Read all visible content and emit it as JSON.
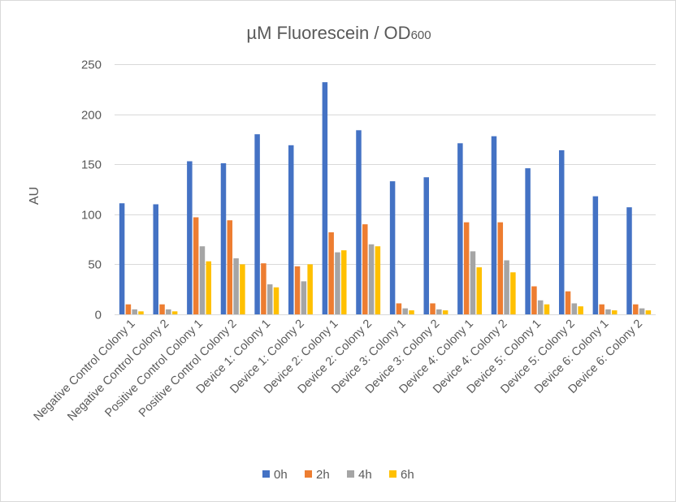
{
  "chart_data": {
    "type": "bar",
    "title": "µM Fluorescein / OD",
    "title_subscript": "600",
    "ylabel": "AU",
    "xlabel": "",
    "ylim": [
      0,
      250
    ],
    "yticks": [
      0,
      50,
      100,
      150,
      200,
      250
    ],
    "grid": true,
    "legend_position": "bottom",
    "categories": [
      "Negative Control Colony 1",
      "Negative Control Colony 2",
      "Positive Control Colony 1",
      "Positive Control Colony 2",
      "Device 1: Colony 1",
      "Device 1: Colony 2",
      "Device 2: Colony 1",
      "Device 2: Colony 2",
      "Device 3: Colony 1",
      "Device 3: Colony 2",
      "Device 4: Colony 1",
      "Device 4: Colony 2",
      "Device 5: Colony 1",
      "Device 5: Colony 2",
      "Device 6: Colony 1",
      "Device 6: Colony 2"
    ],
    "series": [
      {
        "name": "0h",
        "color": "#4472c4",
        "values": [
          111,
          110,
          153,
          151,
          180,
          169,
          232,
          184,
          133,
          137,
          171,
          178,
          146,
          164,
          118,
          107
        ]
      },
      {
        "name": "2h",
        "color": "#ed7d31",
        "values": [
          10,
          10,
          97,
          94,
          51,
          48,
          82,
          90,
          11,
          11,
          92,
          92,
          28,
          23,
          10,
          10
        ]
      },
      {
        "name": "4h",
        "color": "#a5a5a5",
        "values": [
          5,
          5,
          68,
          56,
          30,
          33,
          62,
          70,
          6,
          5,
          63,
          54,
          14,
          11,
          5,
          6
        ]
      },
      {
        "name": "6h",
        "color": "#ffc000",
        "values": [
          3,
          3,
          53,
          50,
          27,
          50,
          64,
          68,
          4,
          4,
          47,
          42,
          10,
          8,
          4,
          4
        ]
      }
    ]
  }
}
